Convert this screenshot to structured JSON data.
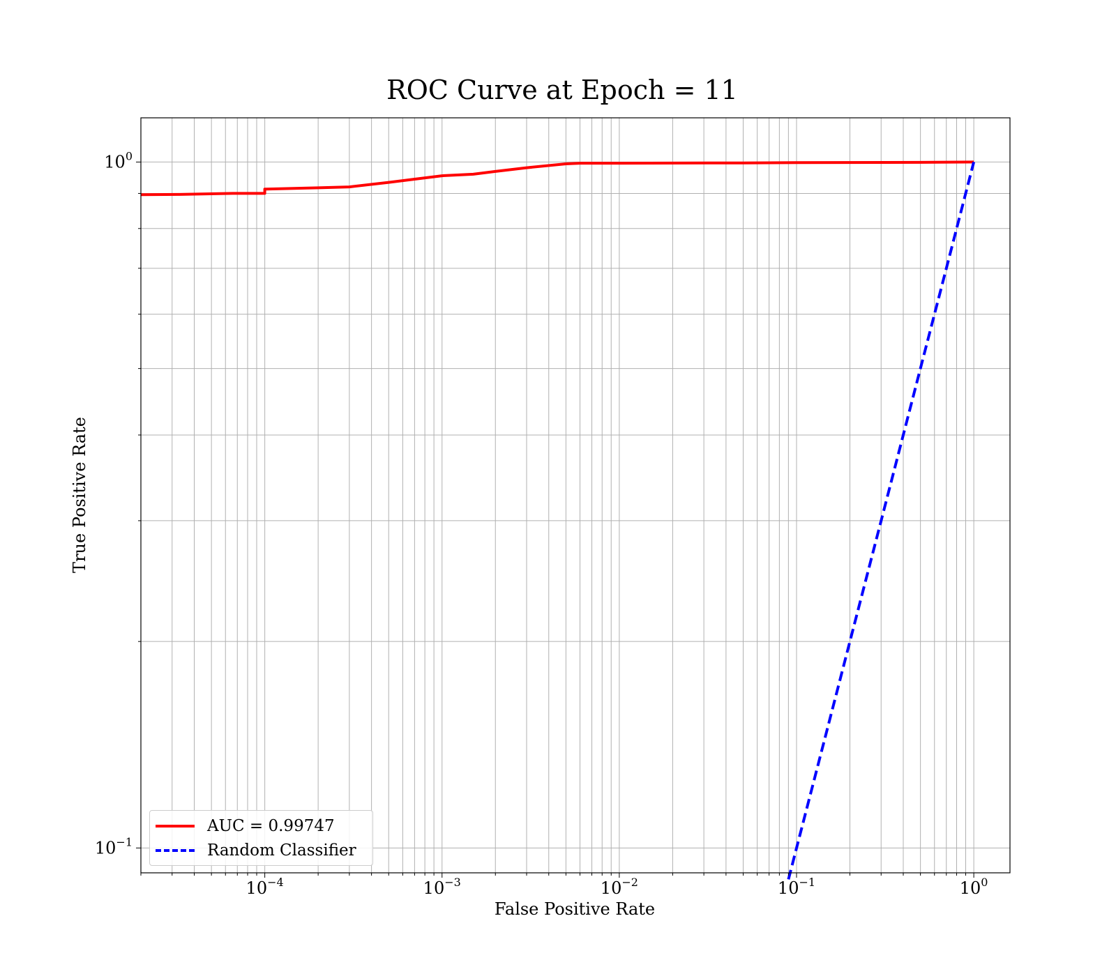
{
  "chart_data": {
    "type": "line",
    "title": "ROC Curve at Epoch = 11",
    "xlabel": "False Positive Rate",
    "ylabel": "True Positive Rate",
    "xscale": "log",
    "yscale": "log",
    "xlim": [
      2e-05,
      1.6
    ],
    "ylim": [
      0.092,
      1.16
    ],
    "grid": true,
    "legend_position": "lower-left",
    "x_ticks": [
      {
        "value": 0.0001,
        "base": "10",
        "exp": "−4"
      },
      {
        "value": 0.001,
        "base": "10",
        "exp": "−3"
      },
      {
        "value": 0.01,
        "base": "10",
        "exp": "−2"
      },
      {
        "value": 0.1,
        "base": "10",
        "exp": "−1"
      },
      {
        "value": 1,
        "base": "10",
        "exp": "0"
      }
    ],
    "y_ticks": [
      {
        "value": 0.1,
        "base": "10",
        "exp": "−1"
      },
      {
        "value": 1,
        "base": "10",
        "exp": "0"
      }
    ],
    "series": [
      {
        "name": "AUC = 0.99747",
        "color": "#ff0000",
        "style": "solid",
        "x": [
          2e-05,
          3.3e-05,
          6.6e-05,
          0.0001,
          0.0001,
          0.0002,
          0.0003,
          0.0005,
          0.0007,
          0.001,
          0.0015,
          0.002,
          0.003,
          0.005,
          0.006,
          0.01,
          0.05,
          0.1,
          0.5,
          1
        ],
        "y": [
          0.896,
          0.897,
          0.9,
          0.9,
          0.913,
          0.917,
          0.92,
          0.934,
          0.944,
          0.955,
          0.96,
          0.969,
          0.981,
          0.994,
          0.996,
          0.996,
          0.997,
          0.998,
          0.999,
          1
        ]
      },
      {
        "name": "Random Classifier",
        "color": "#0000ff",
        "style": "dashed",
        "x": [
          0.09,
          0.1,
          0.2,
          0.3,
          0.5,
          0.7,
          1
        ],
        "y": [
          0.09,
          0.1,
          0.2,
          0.3,
          0.5,
          0.7,
          1
        ]
      }
    ]
  }
}
